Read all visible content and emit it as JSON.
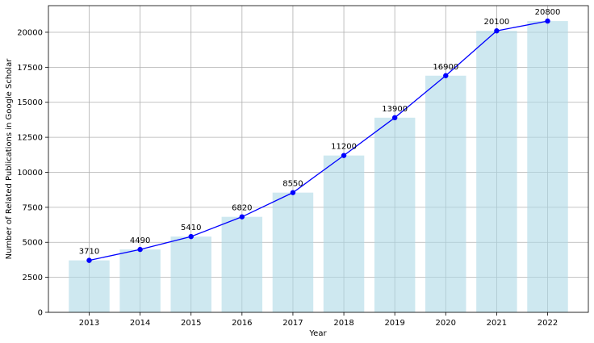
{
  "chart_data": {
    "type": "bar",
    "categories": [
      "2013",
      "2014",
      "2015",
      "2016",
      "2017",
      "2018",
      "2019",
      "2020",
      "2021",
      "2022"
    ],
    "values": [
      3710,
      4490,
      5410,
      6820,
      8550,
      11200,
      13900,
      16900,
      20100,
      20800
    ],
    "overlay_line": {
      "type": "line",
      "marker": "circle",
      "values": [
        3710,
        4490,
        5410,
        6820,
        8550,
        11200,
        13900,
        16900,
        20100,
        20800
      ]
    },
    "data_labels": [
      "3710",
      "4490",
      "5410",
      "6820",
      "8550",
      "11200",
      "13900",
      "16900",
      "20100",
      "20800"
    ],
    "xlabel": "Year",
    "ylabel": "Number of Related Publications in Google Scholar",
    "ylim": [
      0,
      21900
    ],
    "yticks": [
      0,
      2500,
      5000,
      7500,
      10000,
      12500,
      15000,
      17500,
      20000
    ],
    "ytick_labels": [
      "0",
      "2500",
      "5000",
      "7500",
      "10000",
      "12500",
      "15000",
      "17500",
      "20000"
    ],
    "grid": true,
    "colors": {
      "bar": "#add8e6",
      "bar_opacity": 0.6,
      "line": "#0000ff",
      "grid": "#b0b0b0",
      "axis": "#000000"
    }
  }
}
